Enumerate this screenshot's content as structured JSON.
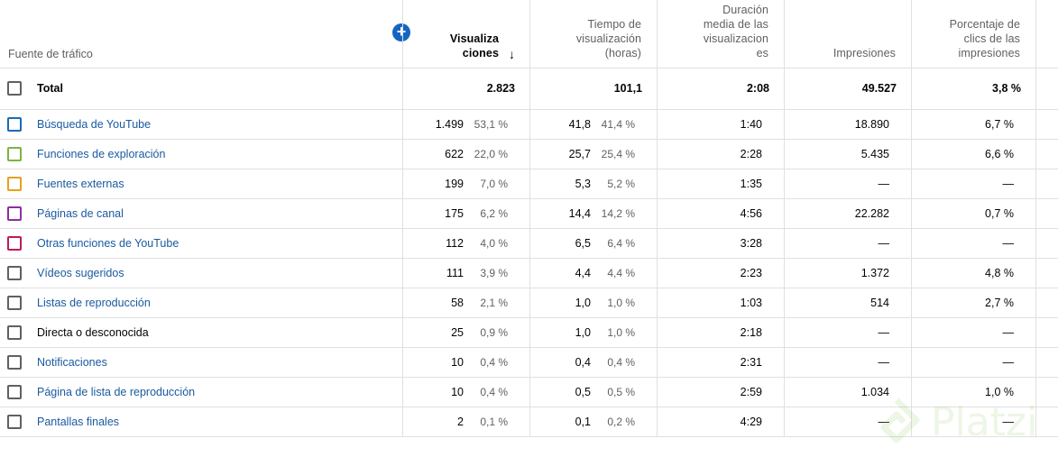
{
  "header": {
    "source_label": "Fuente de tráfico",
    "add_metric_symbol": "+",
    "sort_symbol": "↓",
    "columns": [
      "Visualiza\nciones",
      "Tiempo de\nvisualización\n(horas)",
      "Duración\nmedia de las\nvisualizacion\nes",
      "Impresiones",
      "Porcentaje de\nclics de las\nimpresiones"
    ]
  },
  "total": {
    "label": "Total",
    "views": "2.823",
    "watch_hours": "101,1",
    "avg_duration": "2:08",
    "impressions": "49.527",
    "ctr": "3,8 %"
  },
  "rows": [
    {
      "label": "Búsqueda de YouTube",
      "color": "#1c6bb4",
      "views": "1.499",
      "views_pct": "53,1 %",
      "hours": "41,8",
      "hours_pct": "41,4 %",
      "avg": "1:40",
      "impressions": "18.890",
      "ctr": "6,7 %",
      "link": true
    },
    {
      "label": "Funciones de exploración",
      "color": "#7cb342",
      "views": "622",
      "views_pct": "22,0 %",
      "hours": "25,7",
      "hours_pct": "25,4 %",
      "avg": "2:28",
      "impressions": "5.435",
      "ctr": "6,6 %",
      "link": true
    },
    {
      "label": "Fuentes externas",
      "color": "#e6a11b",
      "views": "199",
      "views_pct": "7,0 %",
      "hours": "5,3",
      "hours_pct": "5,2 %",
      "avg": "1:35",
      "impressions": "—",
      "ctr": "—",
      "link": true
    },
    {
      "label": "Páginas de canal",
      "color": "#8e2ea0",
      "views": "175",
      "views_pct": "6,2 %",
      "hours": "14,4",
      "hours_pct": "14,2 %",
      "avg": "4:56",
      "impressions": "22.282",
      "ctr": "0,7 %",
      "link": true
    },
    {
      "label": "Otras funciones de YouTube",
      "color": "#c2185b",
      "views": "112",
      "views_pct": "4,0 %",
      "hours": "6,5",
      "hours_pct": "6,4 %",
      "avg": "3:28",
      "impressions": "—",
      "ctr": "—",
      "link": true
    },
    {
      "label": "Vídeos sugeridos",
      "color": "#606060",
      "views": "111",
      "views_pct": "3,9 %",
      "hours": "4,4",
      "hours_pct": "4,4 %",
      "avg": "2:23",
      "impressions": "1.372",
      "ctr": "4,8 %",
      "link": true
    },
    {
      "label": "Listas de reproducción",
      "color": "#606060",
      "views": "58",
      "views_pct": "2,1 %",
      "hours": "1,0",
      "hours_pct": "1,0 %",
      "avg": "1:03",
      "impressions": "514",
      "ctr": "2,7 %",
      "link": true
    },
    {
      "label": "Directa o desconocida",
      "color": "#606060",
      "views": "25",
      "views_pct": "0,9 %",
      "hours": "1,0",
      "hours_pct": "1,0 %",
      "avg": "2:18",
      "impressions": "—",
      "ctr": "—",
      "link": false
    },
    {
      "label": "Notificaciones",
      "color": "#606060",
      "views": "10",
      "views_pct": "0,4 %",
      "hours": "0,4",
      "hours_pct": "0,4 %",
      "avg": "2:31",
      "impressions": "—",
      "ctr": "—",
      "link": true
    },
    {
      "label": "Página de lista de reproducción",
      "color": "#606060",
      "views": "10",
      "views_pct": "0,4 %",
      "hours": "0,5",
      "hours_pct": "0,5 %",
      "avg": "2:59",
      "impressions": "1.034",
      "ctr": "1,0 %",
      "link": true
    },
    {
      "label": "Pantallas finales",
      "color": "#606060",
      "views": "2",
      "views_pct": "0,1 %",
      "hours": "0,1",
      "hours_pct": "0,2 %",
      "avg": "4:29",
      "impressions": "—",
      "ctr": "—",
      "link": true
    }
  ],
  "watermark": {
    "text": "Platzi",
    "icon": "platzi-logo-icon"
  }
}
